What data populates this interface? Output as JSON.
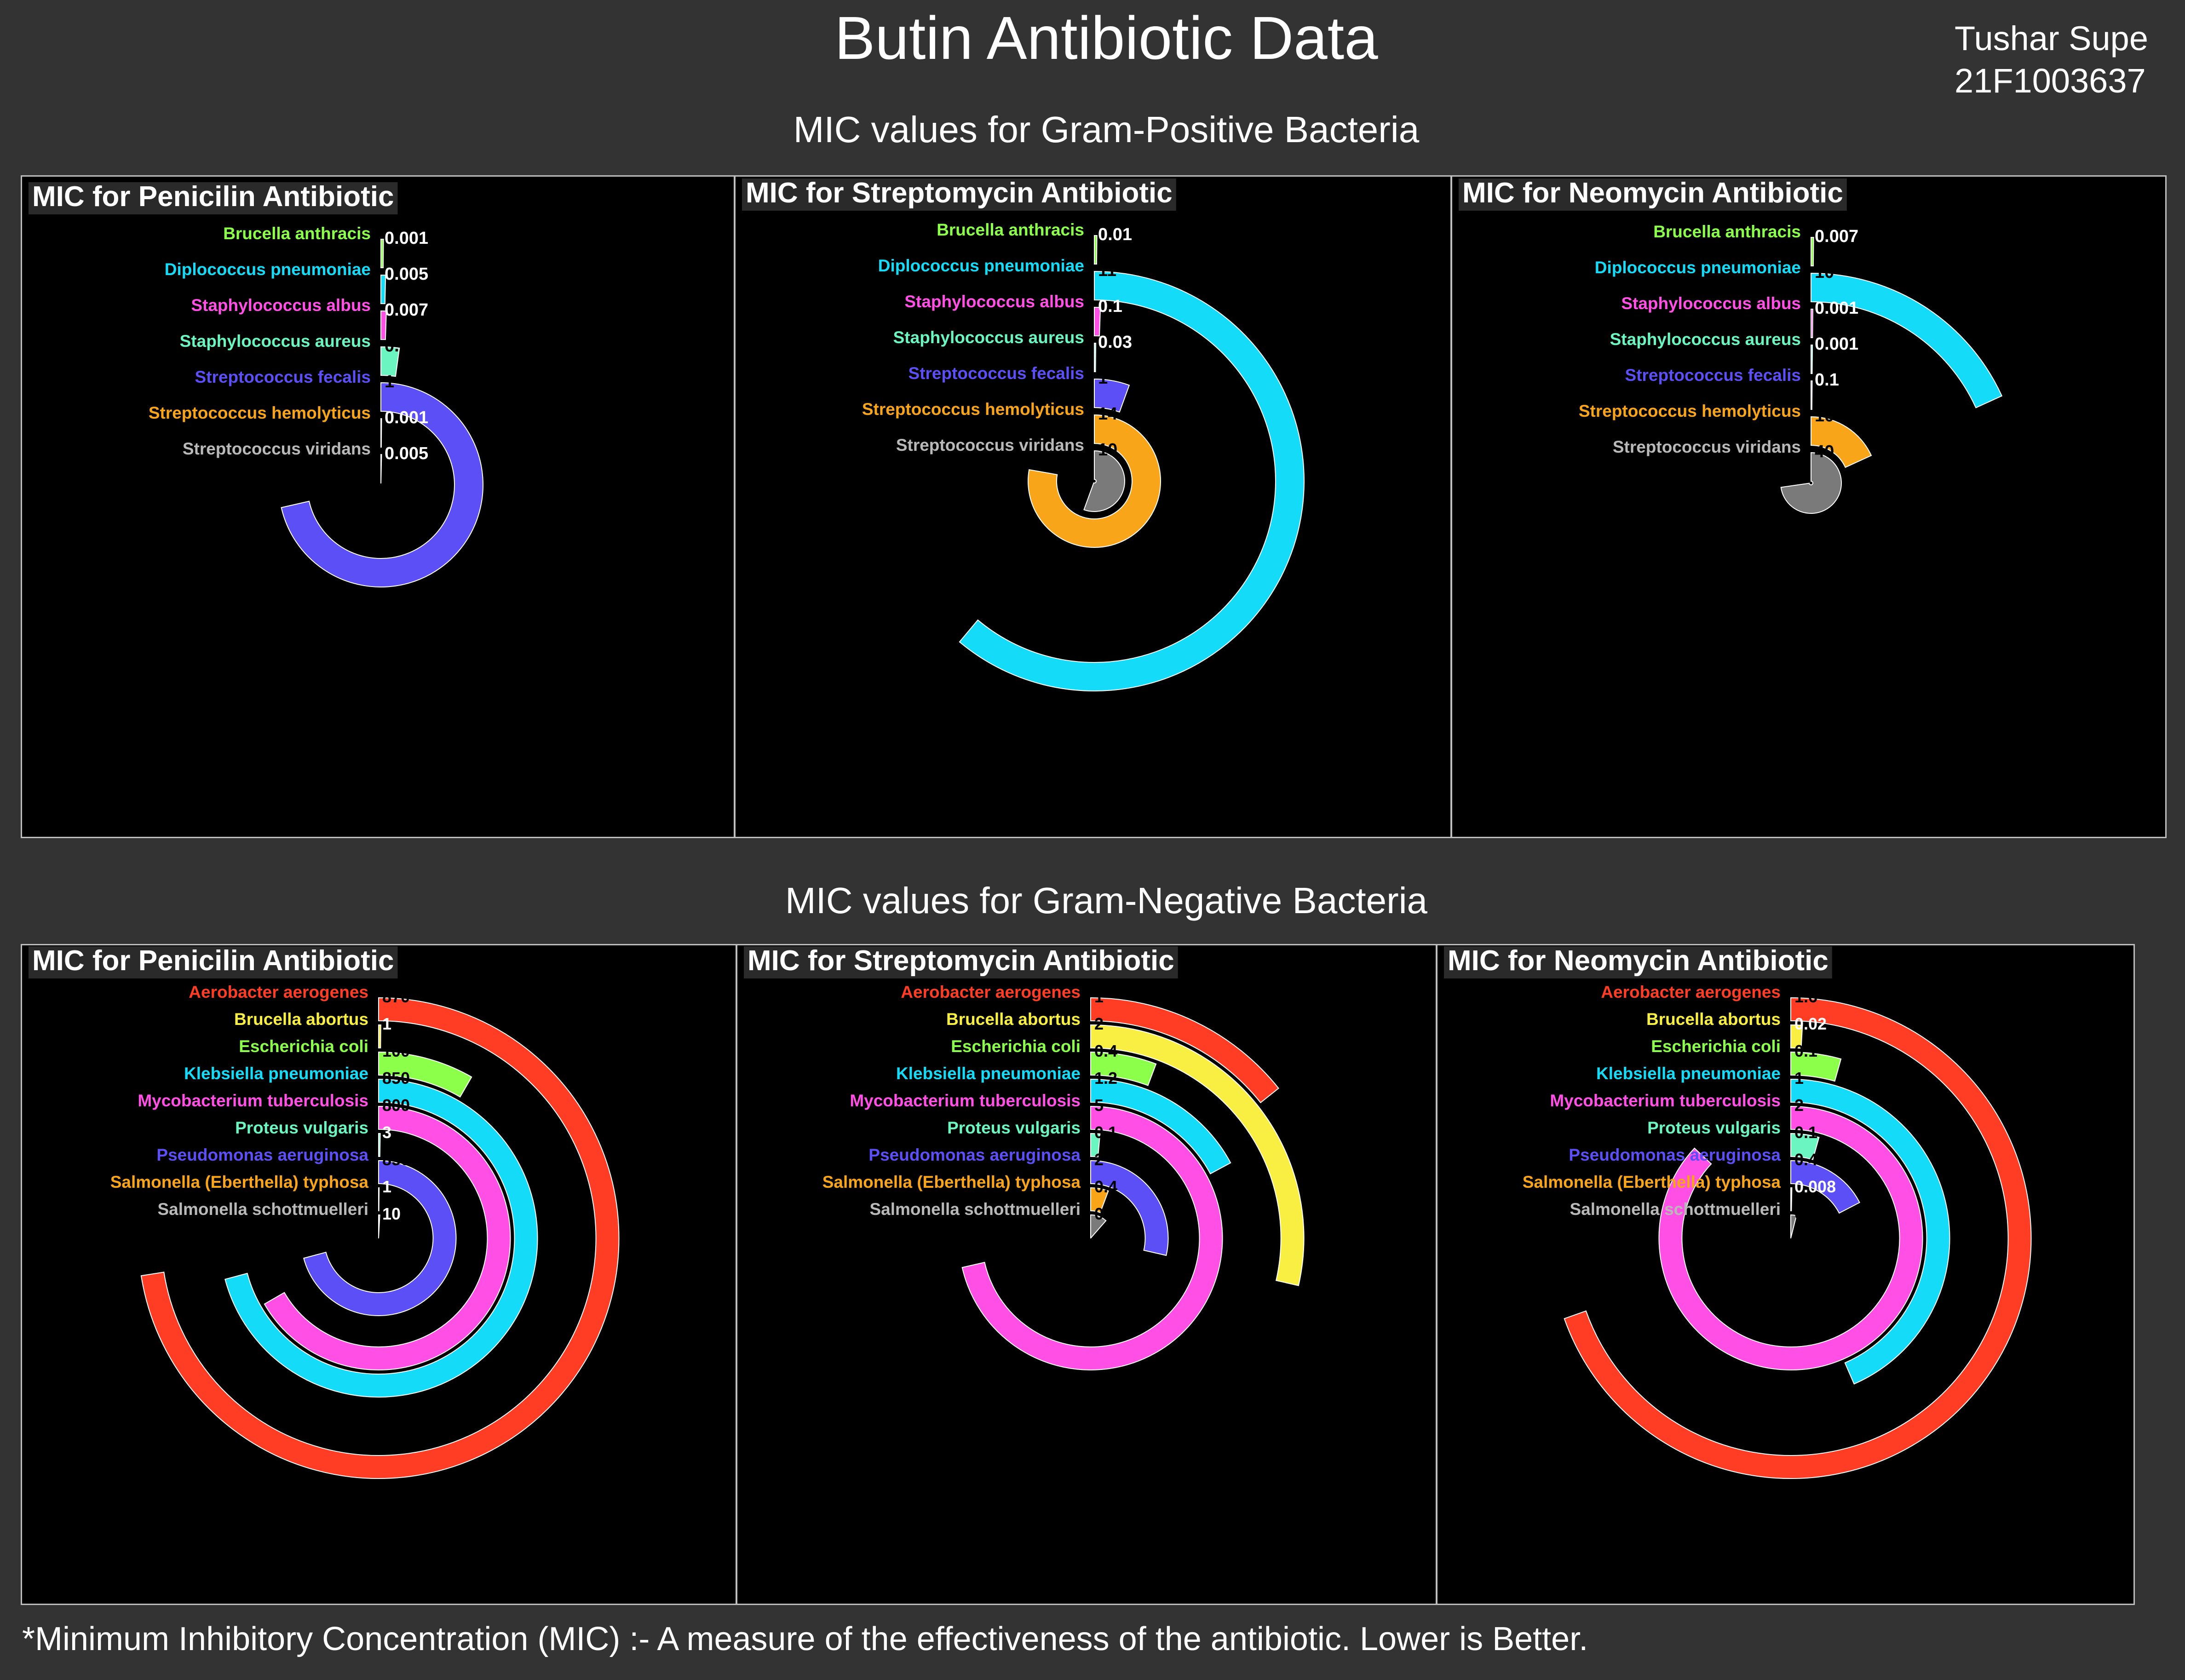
{
  "title": "Butin Antibiotic Data",
  "author": {
    "name": "Tushar Supe",
    "id": "21F1003637"
  },
  "sections": {
    "positive": "MIC values for Gram-Positive Bacteria",
    "negative": "MIC values for Gram-Negative Bacteria"
  },
  "footnote": "*Minimum Inhibitory Concentration (MIC) :- A measure of the effectiveness of the antibiotic. Lower is Better.",
  "chart_data": [
    {
      "type": "radial-bar",
      "group": "Gram-Positive",
      "antibiotic": "Penicilin",
      "title": "MIC for Penicilin Antibiotic",
      "categories": [
        "Brucella anthracis",
        "Diplococcus pneumoniae",
        "Staphylococcus albus",
        "Staphylococcus aureus",
        "Streptococcus fecalis",
        "Streptococcus hemolyticus",
        "Streptococcus viridans"
      ],
      "labels": [
        "0.001",
        "0.005",
        "0.007",
        "0.03",
        "1",
        "0.001",
        "0.005"
      ],
      "values": [
        0.001,
        0.005,
        0.007,
        0.03,
        1,
        0.001,
        0.005
      ],
      "colors": [
        "#8cff4a",
        "#14dcf8",
        "#ff4fe5",
        "#6bf5c0",
        "#5b4ff5",
        "#f9a51a",
        "#7a7a7a"
      ],
      "scale_max": 1.4
    },
    {
      "type": "radial-bar",
      "group": "Gram-Positive",
      "antibiotic": "Streptomycin",
      "title": "MIC for Streptomycin  Antibiotic",
      "categories": [
        "Brucella anthracis",
        "Diplococcus pneumoniae",
        "Staphylococcus albus",
        "Staphylococcus aureus",
        "Streptococcus fecalis",
        "Streptococcus hemolyticus",
        "Streptococcus viridans"
      ],
      "labels": [
        "0.01",
        "11",
        "0.1",
        "0.03",
        "1",
        "14",
        "10"
      ],
      "values": [
        0.01,
        11,
        0.1,
        0.03,
        1,
        14,
        10
      ],
      "colors": [
        "#8cff4a",
        "#14dcf8",
        "#ff4fe5",
        "#6bf5c0",
        "#5b4ff5",
        "#f9a51a",
        "#7a7a7a"
      ],
      "scale_max": 18
    },
    {
      "type": "radial-bar",
      "group": "Gram-Positive",
      "antibiotic": "Neomycin",
      "title": "MIC for Neomycin  Antibiotic",
      "categories": [
        "Brucella anthracis",
        "Diplococcus pneumoniae",
        "Staphylococcus albus",
        "Staphylococcus aureus",
        "Streptococcus fecalis",
        "Streptococcus hemolyticus",
        "Streptococcus viridans"
      ],
      "labels": [
        "0.007",
        "10",
        "0.001",
        "0.001",
        "0.1",
        "10",
        "40"
      ],
      "values": [
        0.007,
        10,
        0.001,
        0.001,
        0.1,
        10,
        40
      ],
      "colors": [
        "#8cff4a",
        "#14dcf8",
        "#ff4fe5",
        "#6bf5c0",
        "#5b4ff5",
        "#f9a51a",
        "#7a7a7a"
      ],
      "scale_max": 55
    },
    {
      "type": "radial-bar",
      "group": "Gram-Negative",
      "antibiotic": "Penicilin",
      "title": "MIC for Penicilin Antibiotic",
      "categories": [
        "Aerobacter aerogenes",
        "Brucella abortus",
        "Escherichia coli",
        "Klebsiella pneumoniae",
        "Mycobacterium tuberculosis",
        "Proteus vulgaris",
        "Pseudomonas aeruginosa",
        "Salmonella (Eberthella) typhosa",
        "Salmonella schottmuelleri"
      ],
      "labels": [
        "870",
        "1",
        "100",
        "850",
        "800",
        "3",
        "850",
        "1",
        "10"
      ],
      "values": [
        870,
        1,
        100,
        850,
        800,
        3,
        850,
        1,
        10
      ],
      "colors": [
        "#ff3d24",
        "#f8ef42",
        "#8cff4a",
        "#14dcf8",
        "#ff4fe5",
        "#6bf5c0",
        "#5b4ff5",
        "#f9a51a",
        "#7a7a7a"
      ],
      "scale_max": 1200
    },
    {
      "type": "radial-bar",
      "group": "Gram-Negative",
      "antibiotic": "Streptomycin",
      "title": "MIC for Streptomycin Antibiotic",
      "categories": [
        "Aerobacter aerogenes",
        "Brucella abortus",
        "Escherichia coli",
        "Klebsiella pneumoniae",
        "Mycobacterium tuberculosis",
        "Proteus vulgaris",
        "Pseudomonas aeruginosa",
        "Salmonella (Eberthella) typhosa",
        "Salmonella schottmuelleri"
      ],
      "labels": [
        "1",
        "2",
        "0.4",
        "1.2",
        "5",
        "0.1",
        "2",
        "0.4",
        "0.8"
      ],
      "values": [
        1,
        2,
        0.4,
        1.2,
        5,
        0.1,
        2,
        0.4,
        0.8
      ],
      "colors": [
        "#ff3d24",
        "#f8ef42",
        "#8cff4a",
        "#14dcf8",
        "#ff4fe5",
        "#6bf5c0",
        "#5b4ff5",
        "#f9a51a",
        "#7a7a7a"
      ],
      "scale_max": 7
    },
    {
      "type": "radial-bar",
      "group": "Gram-Negative",
      "antibiotic": "Neomycin",
      "title": "MIC for Neomycin Antibiotic",
      "categories": [
        "Aerobacter aerogenes",
        "Brucella abortus",
        "Escherichia coli",
        "Klebsiella pneumoniae",
        "Mycobacterium tuberculosis",
        "Proteus vulgaris",
        "Pseudomonas aeruginosa",
        "Salmonella (Eberthella) typhosa",
        "Salmonella schottmuelleri"
      ],
      "labels": [
        "1.6",
        "0.02",
        "0.1",
        "1",
        "2",
        "0.1",
        "0.4",
        "0.008",
        "0.09"
      ],
      "values": [
        1.6,
        0.02,
        0.1,
        1,
        2,
        0.1,
        0.4,
        0.008,
        0.09
      ],
      "colors": [
        "#ff3d24",
        "#f8ef42",
        "#8cff4a",
        "#14dcf8",
        "#ff4fe5",
        "#6bf5c0",
        "#5b4ff5",
        "#f9a51a",
        "#7a7a7a"
      ],
      "scale_max": 2.3
    }
  ]
}
